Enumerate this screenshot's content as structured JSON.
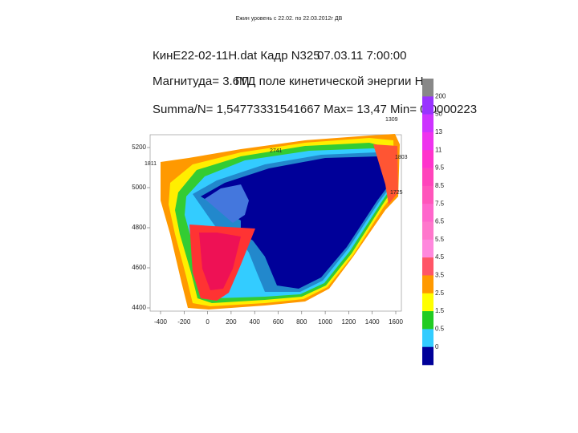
{
  "slide_title": "Ежин уровень с 22.02. по 22.03.2012г ДВ",
  "header": {
    "file": "КинЕ22-02-11Н.dat Кадр N325",
    "datetime": "07.03.11 7:00:00",
    "magnitude": "Магнитуда= 3.6M",
    "field": "ГГД поле кинетической энергии Н.",
    "stats": "Summa/N= 1,54773331541667 Max= 13,47 Min= 0,0000223"
  },
  "x_axis": {
    "ticks": [
      "-400",
      "-200",
      "0",
      "200",
      "400",
      "600",
      "800",
      "1000",
      "1200",
      "1400",
      "1600"
    ]
  },
  "y_axis": {
    "ticks": [
      "5200",
      "5000",
      "4800",
      "4600",
      "4400"
    ]
  },
  "stations": [
    "1309",
    "2741",
    "1811",
    "1803",
    "1725"
  ],
  "colorbar": {
    "labels": [
      "200",
      "50",
      "13",
      "11",
      "9.5",
      "8.5",
      "7.5",
      "6.5",
      "5.5",
      "4.5",
      "3.5",
      "2.5",
      "1.5",
      "0.5",
      "0"
    ]
  }
}
